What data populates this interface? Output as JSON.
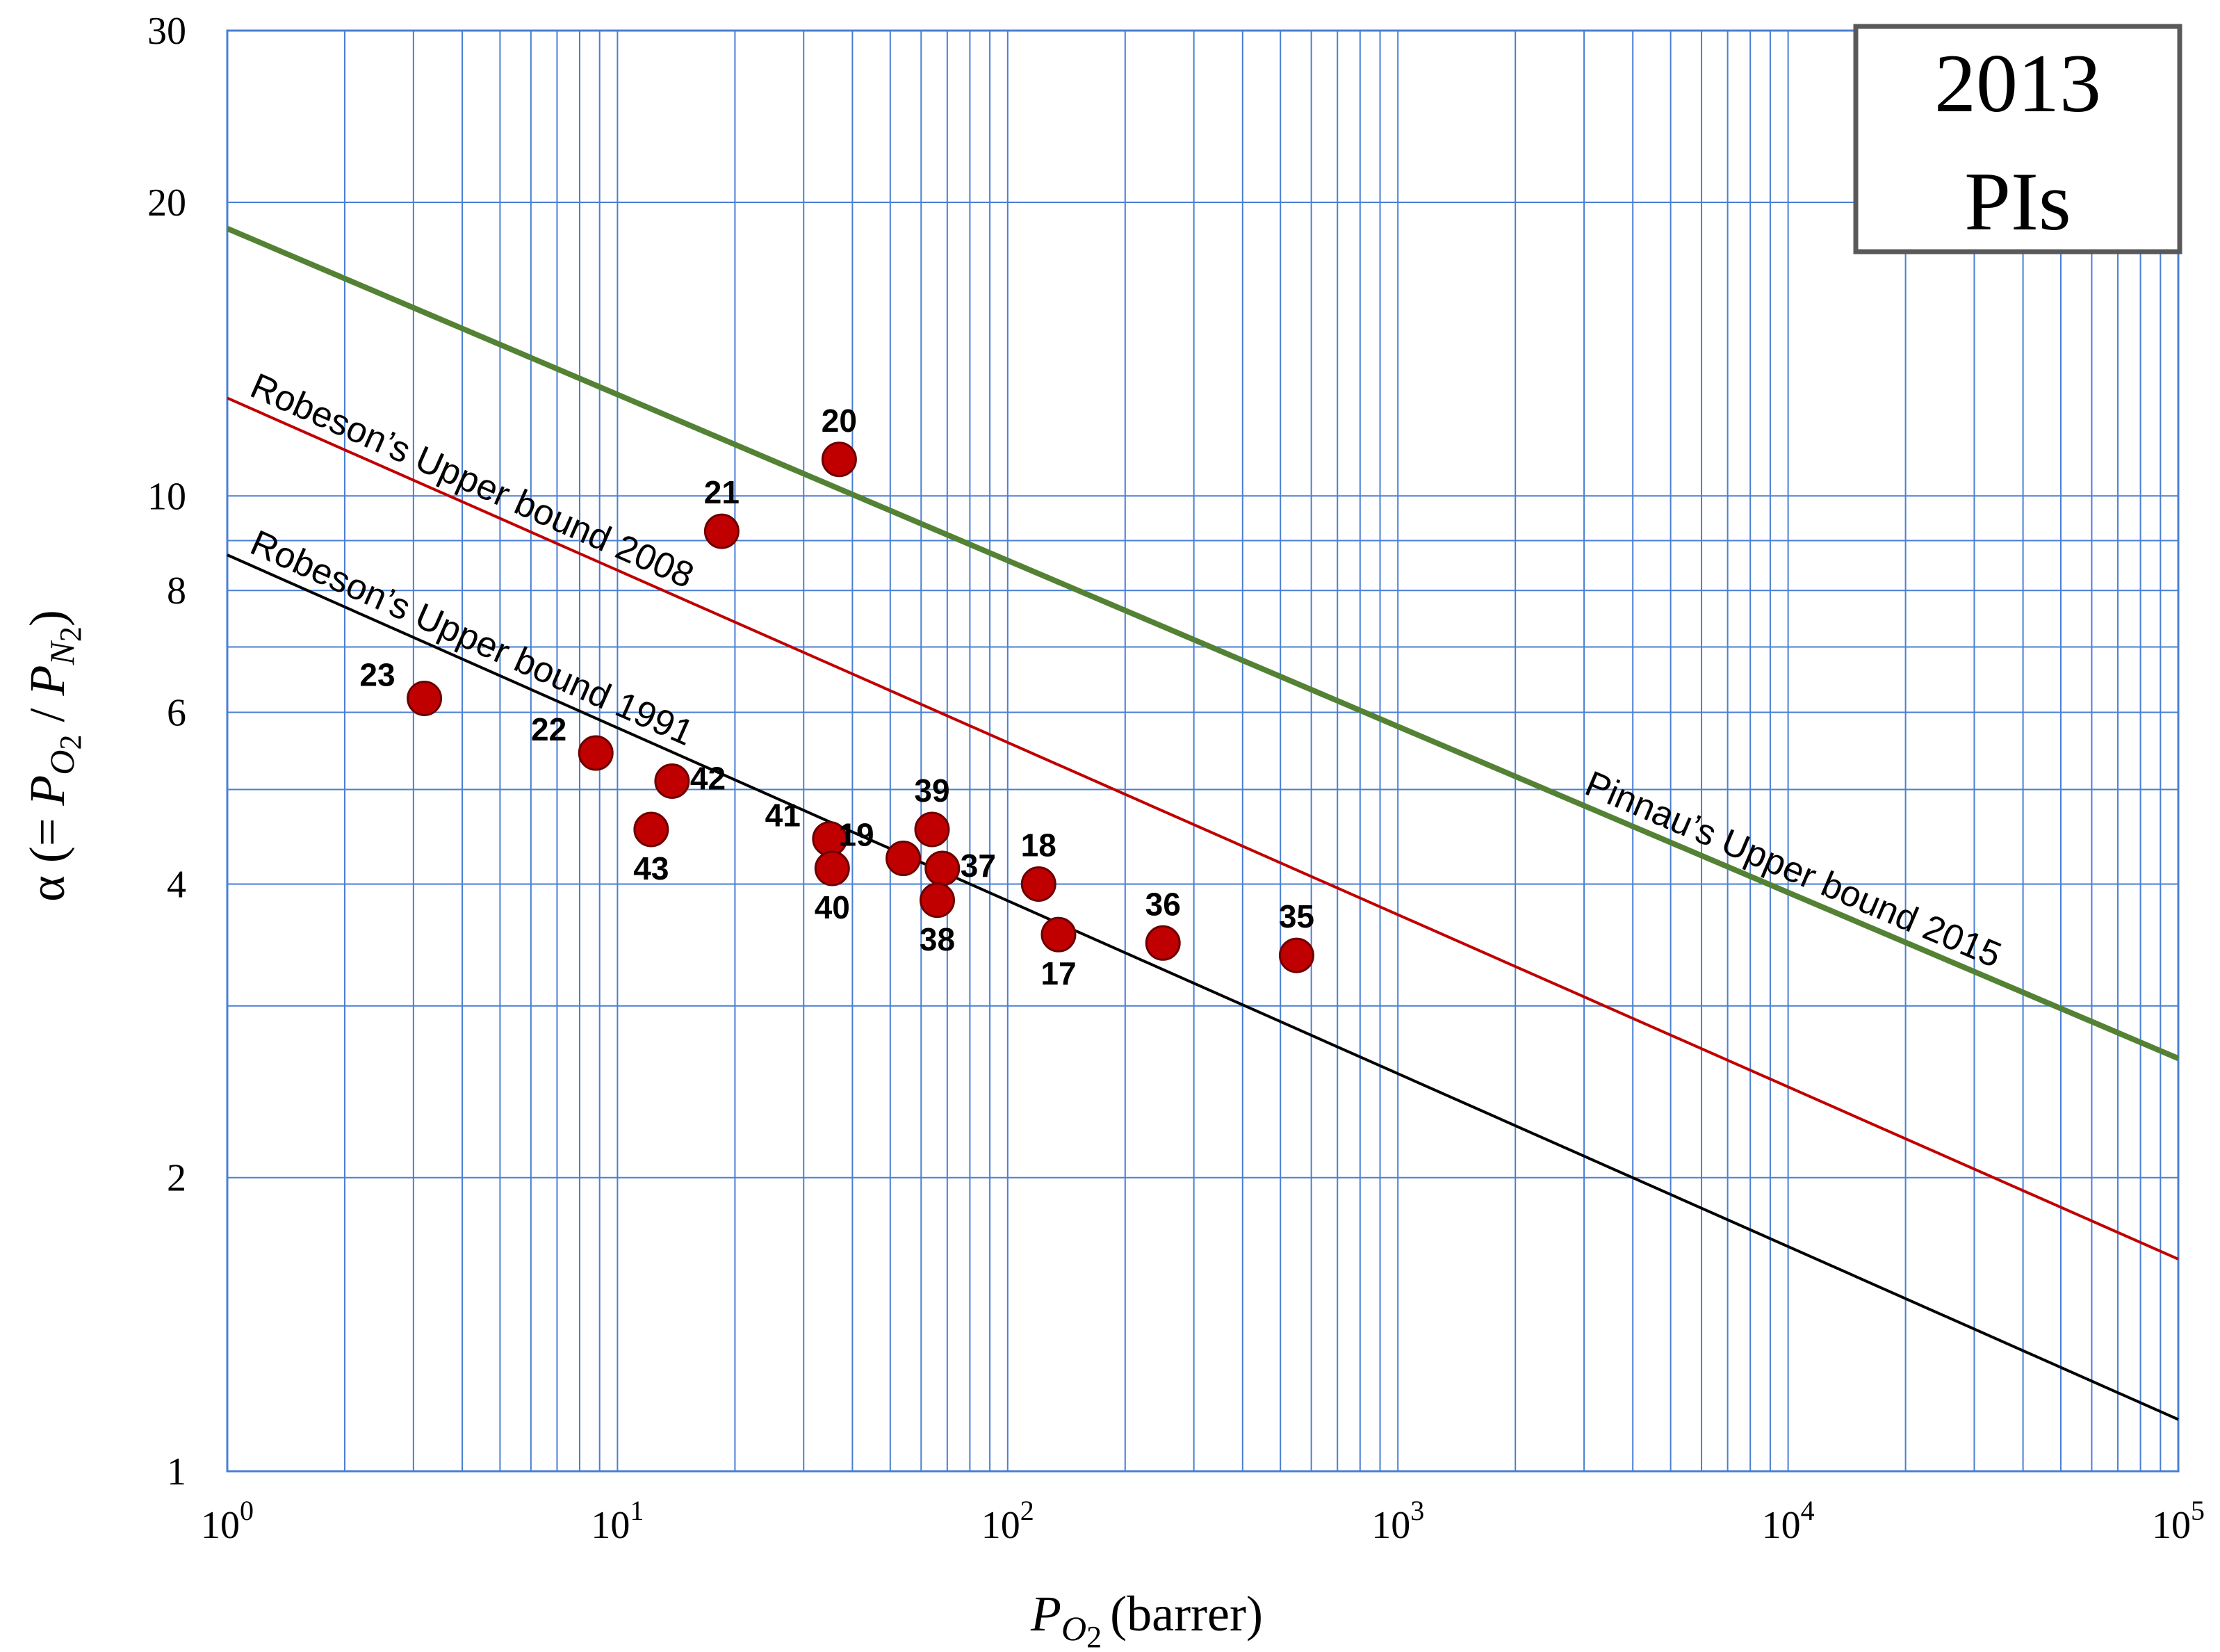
{
  "chart_data": {
    "type": "scatter",
    "x_scale": "log",
    "y_scale": "log",
    "xlim": [
      1,
      100000
    ],
    "ylim": [
      1,
      30
    ],
    "grid": true,
    "title": "",
    "xlabel": {
      "symbol": "P",
      "subscript": "O",
      "subsubscript": "2",
      "unit": "(barrer)"
    },
    "ylabel": {
      "prefix": "α (= ",
      "num_symbol": "P",
      "num_sub": "O",
      "num_subsub": "2",
      "sep": " / ",
      "den_symbol": "P",
      "den_sub": "N",
      "den_subsub": "2",
      "suffix": ")"
    },
    "x_ticks": [
      {
        "base": "10",
        "exp": "0",
        "value": 1
      },
      {
        "base": "10",
        "exp": "1",
        "value": 10
      },
      {
        "base": "10",
        "exp": "2",
        "value": 100
      },
      {
        "base": "10",
        "exp": "3",
        "value": 1000
      },
      {
        "base": "10",
        "exp": "4",
        "value": 10000
      },
      {
        "base": "10",
        "exp": "5",
        "value": 100000
      }
    ],
    "y_ticks": [
      {
        "label": "1",
        "value": 1
      },
      {
        "label": "2",
        "value": 2
      },
      {
        "label": "4",
        "value": 4
      },
      {
        "label": "6",
        "value": 6
      },
      {
        "label": "8",
        "value": 8
      },
      {
        "label": "10",
        "value": 10
      },
      {
        "label": "20",
        "value": 20
      },
      {
        "label": "30",
        "value": 30
      }
    ],
    "badge": {
      "line1": "2013",
      "line2": "PIs"
    },
    "colors": {
      "grid": "#4a7fd4",
      "point_fill": "#c00000",
      "point_stroke": "#6b0000",
      "bound_1991": "#000000",
      "bound_2008": "#c00000",
      "bound_2015": "#548235",
      "badge_border": "#595959"
    },
    "upper_bounds": [
      {
        "name": "Robeson’s Upper bound 1991",
        "color": "#000000",
        "from": {
          "x": 1,
          "y": 8.7
        },
        "to": {
          "x": 100000,
          "y": 1.13
        },
        "label_anchor_x": 1.1
      },
      {
        "name": "Robeson’s Upper bound 2008",
        "color": "#c00000",
        "from": {
          "x": 1,
          "y": 12.6
        },
        "to": {
          "x": 100000,
          "y": 1.65
        },
        "label_anchor_x": 1.1
      },
      {
        "name": "Pinnau’s Upper bound 2015",
        "color": "#548235",
        "from": {
          "x": 1,
          "y": 18.8
        },
        "to": {
          "x": 100000,
          "y": 2.65
        },
        "label_anchor_x": 2900
      }
    ],
    "series": [
      {
        "name": "2013 PIs",
        "points": [
          {
            "label": "20",
            "x": 37,
            "y": 10.9,
            "label_pos": "above"
          },
          {
            "label": "21",
            "x": 18.5,
            "y": 9.2,
            "label_pos": "above"
          },
          {
            "label": "23",
            "x": 3.2,
            "y": 6.2,
            "label_pos": "upper-left"
          },
          {
            "label": "22",
            "x": 8.8,
            "y": 5.45,
            "label_pos": "upper-left"
          },
          {
            "label": "42",
            "x": 13.8,
            "y": 5.1,
            "label_pos": "right"
          },
          {
            "label": "43",
            "x": 12.2,
            "y": 4.55,
            "label_pos": "below"
          },
          {
            "label": "41",
            "x": 35,
            "y": 4.45,
            "label_pos": "upper-left"
          },
          {
            "label": "40",
            "x": 35.5,
            "y": 4.15,
            "label_pos": "below"
          },
          {
            "label": "19",
            "x": 54,
            "y": 4.25,
            "label_pos": "upper-left"
          },
          {
            "label": "39",
            "x": 64,
            "y": 4.55,
            "label_pos": "above"
          },
          {
            "label": "37",
            "x": 68,
            "y": 4.15,
            "label_pos": "right"
          },
          {
            "label": "38",
            "x": 66,
            "y": 3.85,
            "label_pos": "below"
          },
          {
            "label": "18",
            "x": 120,
            "y": 4.0,
            "label_pos": "above"
          },
          {
            "label": "17",
            "x": 135,
            "y": 3.55,
            "label_pos": "below"
          },
          {
            "label": "36",
            "x": 250,
            "y": 3.48,
            "label_pos": "above"
          },
          {
            "label": "35",
            "x": 550,
            "y": 3.38,
            "label_pos": "above"
          }
        ]
      }
    ]
  }
}
